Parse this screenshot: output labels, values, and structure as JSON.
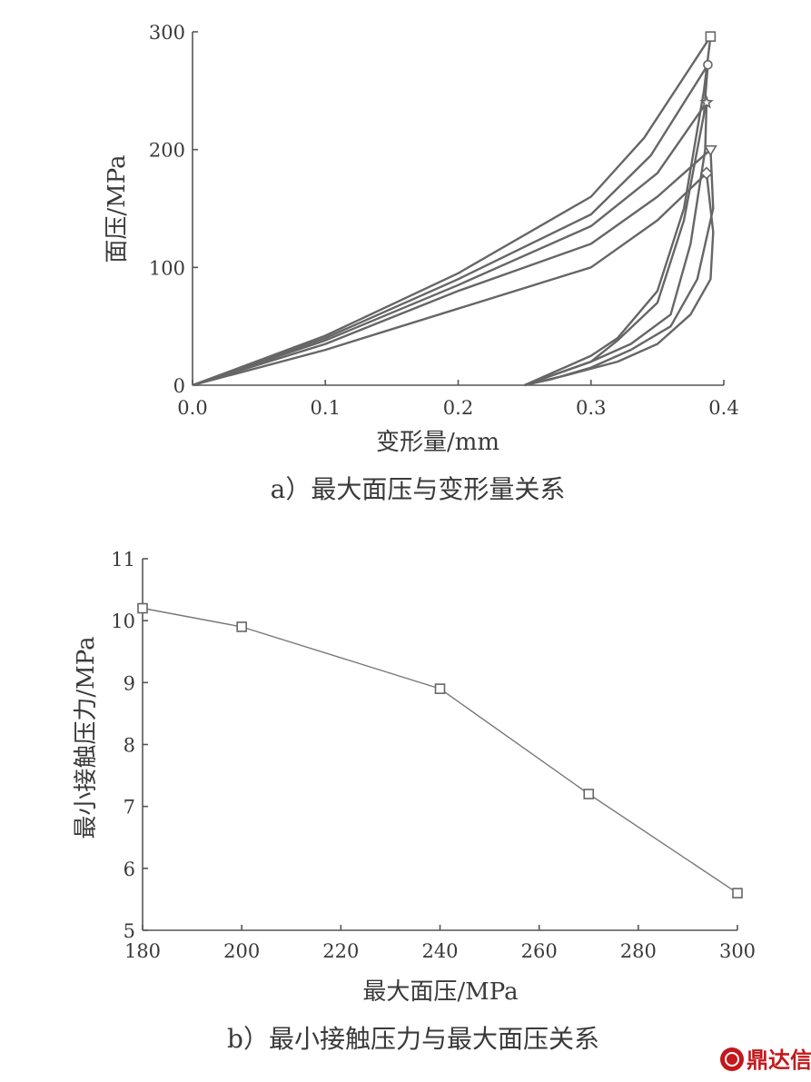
{
  "chart_data": [
    {
      "type": "line",
      "xlabel": "变形量/mm",
      "ylabel": "面压/MPa",
      "xlim": [
        0,
        0.4
      ],
      "ylim": [
        0,
        300
      ],
      "xticks": [
        "0.0",
        "0.1",
        "0.2",
        "0.3",
        "0.4"
      ],
      "yticks": [
        "0",
        "100",
        "200",
        "300"
      ],
      "caption": "a）最大面压与变形量关系",
      "series": [
        {
          "marker": "square",
          "x": [
            0,
            0.1,
            0.2,
            0.3,
            0.34,
            0.39,
            0.385,
            0.37,
            0.35,
            0.32,
            0.3,
            0.27,
            0.25
          ],
          "y": [
            0,
            42,
            95,
            160,
            210,
            296,
            250,
            150,
            80,
            40,
            25,
            10,
            0
          ]
        },
        {
          "marker": "circle",
          "x": [
            0,
            0.1,
            0.2,
            0.3,
            0.345,
            0.388,
            0.385,
            0.37,
            0.35,
            0.32,
            0.3,
            0.27,
            0.25
          ],
          "y": [
            0,
            40,
            90,
            145,
            195,
            272,
            230,
            140,
            70,
            38,
            20,
            8,
            0
          ]
        },
        {
          "marker": "star",
          "x": [
            0,
            0.1,
            0.2,
            0.3,
            0.35,
            0.387,
            0.386,
            0.375,
            0.36,
            0.33,
            0.3,
            0.27,
            0.25
          ],
          "y": [
            0,
            38,
            85,
            135,
            180,
            240,
            200,
            120,
            60,
            35,
            20,
            8,
            0
          ]
        },
        {
          "marker": "triangle",
          "x": [
            0,
            0.1,
            0.2,
            0.3,
            0.35,
            0.39,
            0.392,
            0.38,
            0.36,
            0.33,
            0.3,
            0.27,
            0.25
          ],
          "y": [
            0,
            35,
            80,
            120,
            160,
            200,
            150,
            90,
            50,
            30,
            15,
            5,
            0
          ]
        },
        {
          "marker": "diamond",
          "x": [
            0,
            0.1,
            0.2,
            0.3,
            0.35,
            0.387,
            0.392,
            0.39,
            0.375,
            0.35,
            0.32,
            0.28,
            0.25
          ],
          "y": [
            0,
            30,
            65,
            100,
            140,
            180,
            130,
            90,
            60,
            35,
            20,
            8,
            0
          ]
        }
      ]
    },
    {
      "type": "line",
      "xlabel": "最大面压/MPa",
      "ylabel": "最小接触压力/MPa",
      "xlim": [
        180,
        300
      ],
      "ylim": [
        5,
        11
      ],
      "xticks": [
        "180",
        "200",
        "220",
        "240",
        "260",
        "280",
        "300"
      ],
      "yticks": [
        "5",
        "6",
        "7",
        "8",
        "9",
        "10",
        "11"
      ],
      "caption": "b）最小接触压力与最大面压关系",
      "series": [
        {
          "marker": "square",
          "x": [
            180,
            200,
            240,
            270,
            300
          ],
          "y": [
            10.2,
            9.9,
            8.9,
            7.2,
            5.6
          ]
        }
      ]
    }
  ],
  "logo": {
    "text": "鼎达信",
    "color": "#c4181c"
  }
}
